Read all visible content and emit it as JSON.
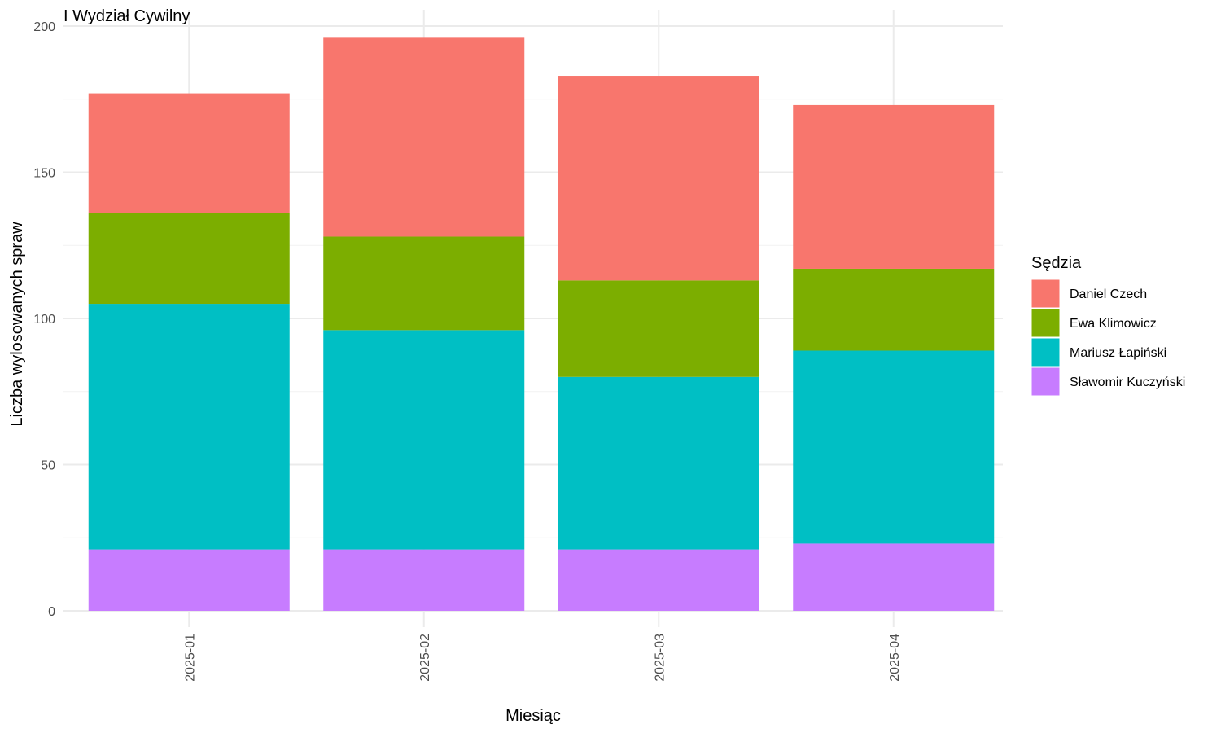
{
  "chart_data": {
    "type": "bar",
    "stacked": true,
    "title": "I Wydział Cywilny",
    "xlabel": "Miesiąc",
    "ylabel": "Liczba wylosowanych spraw",
    "categories": [
      "2025-01",
      "2025-02",
      "2025-03",
      "2025-04"
    ],
    "ylim": [
      0,
      200
    ],
    "yticks": [
      0,
      50,
      100,
      150,
      200
    ],
    "grid": true,
    "legend": {
      "title": "Sędzia",
      "position": "right"
    },
    "series": [
      {
        "name": "Sławomir Kuczyński",
        "color": "#C77CFF",
        "values": [
          21,
          21,
          21,
          23
        ]
      },
      {
        "name": "Mariusz Łapiński",
        "color": "#00BFC4",
        "values": [
          84,
          75,
          59,
          66
        ]
      },
      {
        "name": "Ewa Klimowicz",
        "color": "#7CAE00",
        "values": [
          31,
          32,
          33,
          28
        ]
      },
      {
        "name": "Daniel Czech",
        "color": "#F8766D",
        "values": [
          41,
          68,
          70,
          56
        ]
      }
    ],
    "legend_order": [
      "Daniel Czech",
      "Ewa Klimowicz",
      "Mariusz Łapiński",
      "Sławomir Kuczyński"
    ]
  }
}
